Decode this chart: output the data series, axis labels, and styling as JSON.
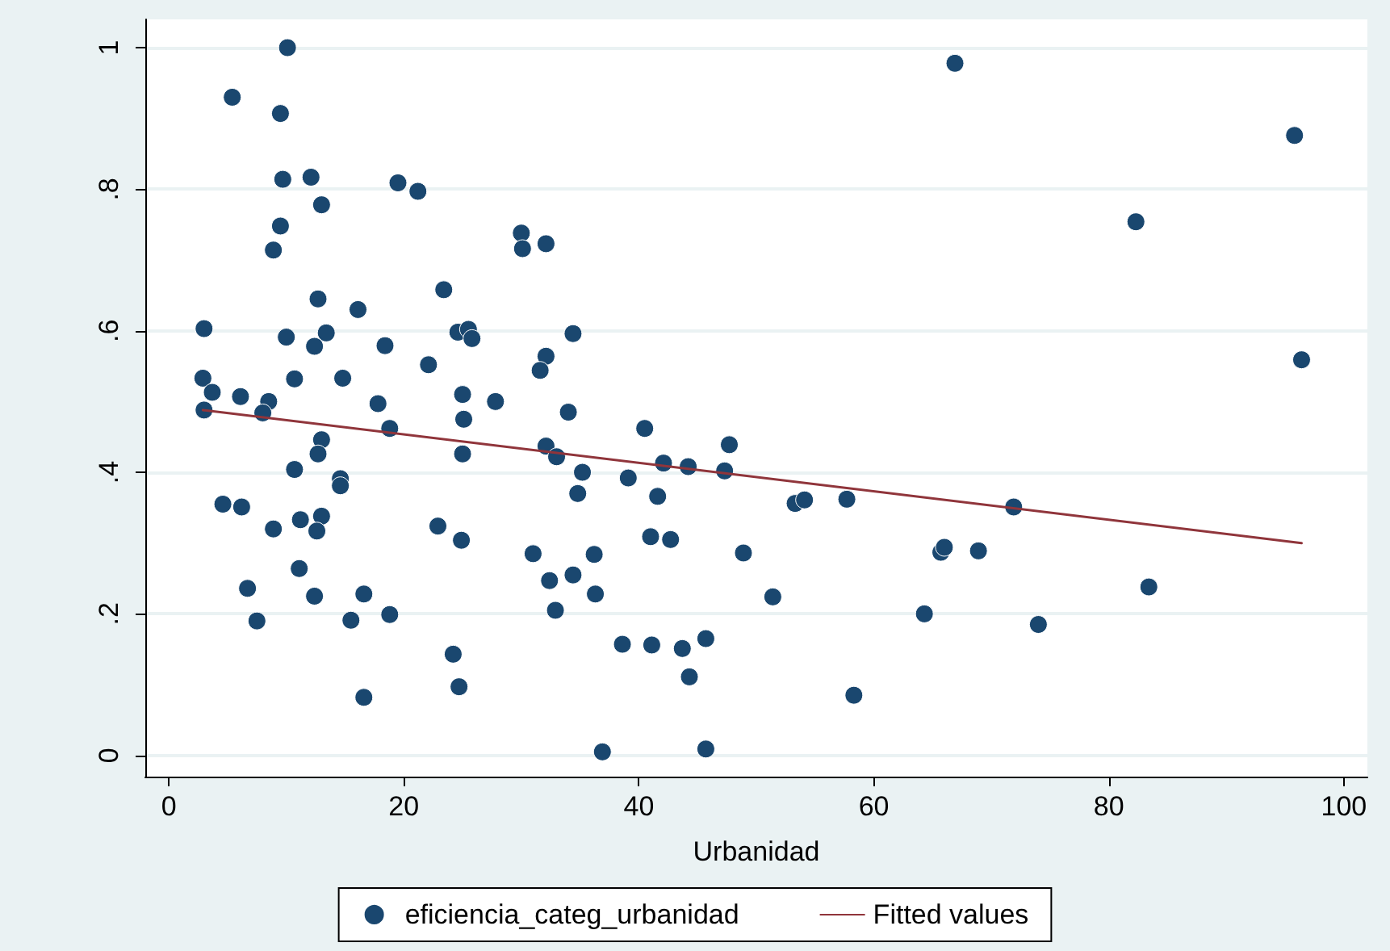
{
  "chart_data": {
    "type": "scatter",
    "xlabel": "Urbanidad",
    "xlim": [
      -2,
      102
    ],
    "xticks": [
      0,
      20,
      40,
      60,
      80,
      100
    ],
    "ylim": [
      -0.03,
      1.04
    ],
    "yticks": [
      {
        "value": 0,
        "label": "0"
      },
      {
        "value": 0.2,
        "label": ".2"
      },
      {
        "value": 0.4,
        "label": ".4"
      },
      {
        "value": 0.6,
        "label": ".6"
      },
      {
        "value": 0.8,
        "label": ".8"
      },
      {
        "value": 1,
        "label": "1"
      }
    ],
    "grid": "y",
    "legend": "bottom",
    "marker": "circle",
    "series": [
      {
        "name": "eficiencia_categ_urbanidad",
        "color": "#1a476f",
        "x": [
          10.1,
          5.4,
          9.5,
          9.7,
          12.1,
          13.0,
          9.5,
          8.9,
          19.5,
          21.2,
          23.4,
          16.1,
          12.7,
          3.0,
          10.0,
          13.4,
          12.4,
          18.4,
          22.1,
          10.7,
          14.8,
          2.9,
          3.7,
          6.1,
          8.5,
          8.0,
          3.0,
          17.8,
          18.8,
          13.0,
          12.7,
          10.7,
          14.6,
          14.6,
          4.6,
          6.2,
          11.2,
          13.0,
          8.9,
          12.6,
          22.9,
          11.1,
          6.7,
          12.4,
          16.6,
          7.5,
          15.5,
          18.8,
          16.6,
          24.6,
          25.5,
          25.8,
          25.0,
          25.1,
          25.0,
          24.9,
          24.2,
          24.7,
          27.8,
          30.0,
          30.1,
          32.1,
          34.4,
          32.1,
          31.6,
          34.0,
          32.1,
          33.0,
          35.2,
          34.8,
          31.0,
          32.4,
          34.4,
          36.2,
          32.9,
          36.3,
          36.9,
          38.6,
          39.1,
          40.5,
          42.1,
          41.6,
          41.0,
          42.7,
          41.1,
          44.2,
          43.7,
          44.3,
          45.7,
          45.7,
          47.7,
          47.3,
          48.9,
          51.4,
          53.3,
          54.1,
          57.7,
          58.3,
          66.9,
          64.3,
          65.7,
          66.0,
          68.9,
          71.9,
          74.0,
          82.3,
          83.4,
          95.8,
          96.4
        ],
        "values": [
          1.0,
          0.93,
          0.907,
          0.814,
          0.817,
          0.778,
          0.748,
          0.714,
          0.809,
          0.797,
          0.658,
          0.63,
          0.645,
          0.603,
          0.591,
          0.597,
          0.578,
          0.579,
          0.552,
          0.532,
          0.533,
          0.533,
          0.513,
          0.507,
          0.5,
          0.484,
          0.488,
          0.497,
          0.462,
          0.446,
          0.426,
          0.404,
          0.391,
          0.381,
          0.355,
          0.351,
          0.333,
          0.338,
          0.32,
          0.317,
          0.324,
          0.264,
          0.236,
          0.225,
          0.228,
          0.19,
          0.191,
          0.199,
          0.082,
          0.598,
          0.602,
          0.589,
          0.51,
          0.475,
          0.426,
          0.304,
          0.143,
          0.097,
          0.5,
          0.738,
          0.716,
          0.723,
          0.596,
          0.564,
          0.544,
          0.485,
          0.437,
          0.422,
          0.4,
          0.37,
          0.285,
          0.247,
          0.255,
          0.284,
          0.205,
          0.228,
          0.005,
          0.157,
          0.392,
          0.462,
          0.413,
          0.366,
          0.309,
          0.305,
          0.156,
          0.408,
          0.151,
          0.111,
          0.165,
          0.009,
          0.439,
          0.402,
          0.286,
          0.224,
          0.356,
          0.361,
          0.362,
          0.085,
          0.978,
          0.2,
          0.287,
          0.294,
          0.289,
          0.351,
          0.185,
          0.754,
          0.238,
          0.876,
          0.559
        ]
      },
      {
        "name": "Fitted values",
        "type": "line",
        "color": "#90353b",
        "marker": "none",
        "x": [
          2.9,
          96.4
        ],
        "values": [
          0.488,
          0.3
        ]
      }
    ]
  }
}
